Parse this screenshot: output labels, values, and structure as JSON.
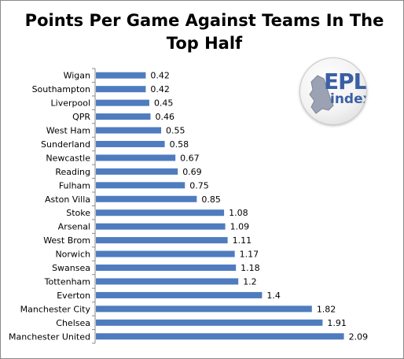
{
  "chart_data": {
    "type": "bar",
    "orientation": "horizontal",
    "title": "Points Per Game Against Teams In The Top Half",
    "categories": [
      "Wigan",
      "Southampton",
      "Liverpool",
      "QPR",
      "West Ham",
      "Sunderland",
      "Newcastle",
      "Reading",
      "Fulham",
      "Aston Villa",
      "Stoke",
      "Arsenal",
      "West Brom",
      "Norwich",
      "Swansea",
      "Tottenham",
      "Everton",
      "Manchester City",
      "Chelsea",
      "Manchester United"
    ],
    "values": [
      0.42,
      0.42,
      0.45,
      0.46,
      0.55,
      0.58,
      0.67,
      0.69,
      0.75,
      0.85,
      1.08,
      1.09,
      1.11,
      1.17,
      1.18,
      1.2,
      1.4,
      1.82,
      1.91,
      2.09
    ],
    "data_labels": [
      "0.42",
      "0.42",
      "0.45",
      "0.46",
      "0.55",
      "0.58",
      "0.67",
      "0.69",
      "0.75",
      "0.85",
      "1.08",
      "1.09",
      "1.11",
      "1.17",
      "1.18",
      "1.2",
      "1.4",
      "1.82",
      "1.91",
      "2.09"
    ],
    "xlim": [
      0,
      2.5
    ],
    "xlabel": "",
    "ylabel": "",
    "grid": false,
    "legend": "none",
    "bar_color": "#4f7cbf"
  },
  "logo": {
    "line1": "EPL",
    "line2": "index",
    "color": "#3a5fa3"
  }
}
